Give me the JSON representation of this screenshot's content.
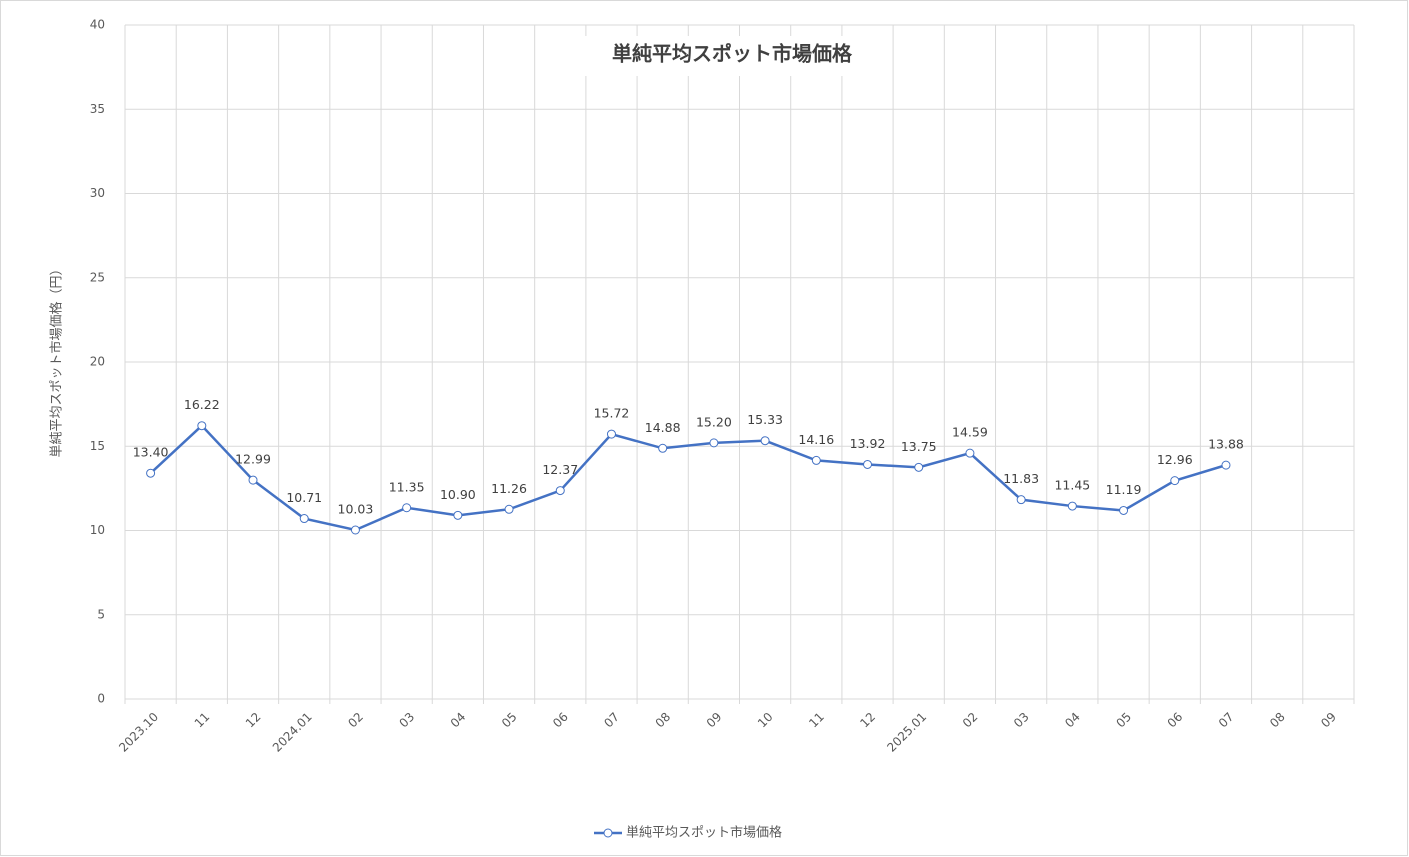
{
  "chart_data": {
    "type": "line",
    "title": "単純平均スポット市場価格",
    "y_label": "単純平均スポット市場価格（円）",
    "categories": [
      "2023.10",
      "11",
      "12",
      "2024.01",
      "02",
      "03",
      "04",
      "05",
      "06",
      "07",
      "08",
      "09",
      "10",
      "11",
      "12",
      "2025.01",
      "02",
      "03",
      "04",
      "05",
      "06",
      "07",
      "08",
      "09"
    ],
    "series": [
      {
        "name": "単純平均スポット市場価格",
        "color": "#4472c4",
        "values": [
          13.4,
          16.22,
          12.99,
          10.71,
          10.03,
          11.35,
          10.9,
          11.26,
          12.37,
          15.72,
          14.88,
          15.2,
          15.33,
          14.16,
          13.92,
          13.75,
          14.59,
          11.83,
          11.45,
          11.19,
          12.96,
          13.88,
          null,
          null
        ],
        "value_labels": [
          "13.40",
          "16.22",
          "12.99",
          "10.71",
          "10.03",
          "11.35",
          "10.90",
          "11.26",
          "12.37",
          "15.72",
          "14.88",
          "15.20",
          "15.33",
          "14.16",
          "13.92",
          "13.75",
          "14.59",
          "11.83",
          "11.45",
          "11.19",
          "12.96",
          "13.88",
          null,
          null
        ]
      }
    ],
    "ylim": [
      0,
      40
    ],
    "yticks": [
      0,
      5,
      10,
      15,
      20,
      25,
      30,
      35,
      40
    ],
    "grid": true,
    "legend": "bottom"
  }
}
